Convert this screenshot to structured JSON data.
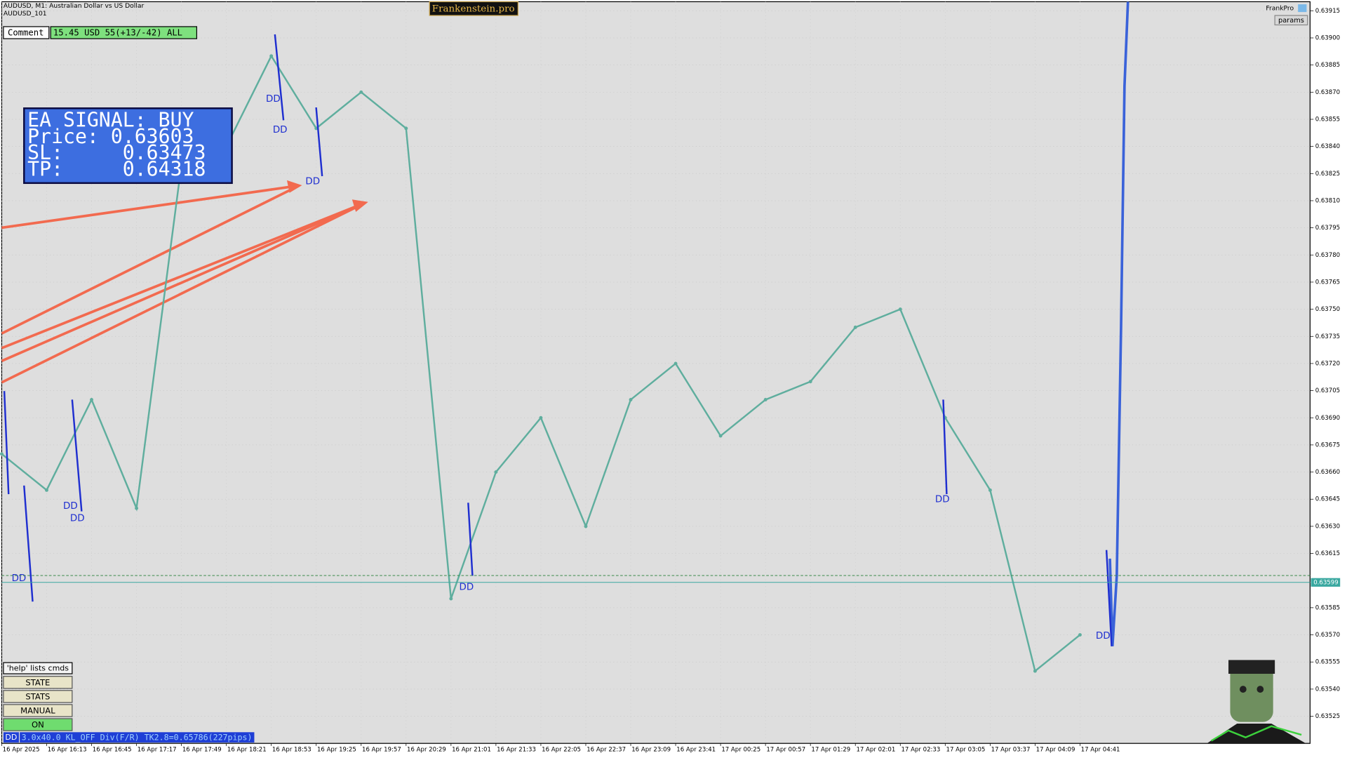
{
  "header": {
    "symbol": "AUDUSD, M1:  Australian Dollar vs US Dollar",
    "template": "AUDUSD_101",
    "brand": "Frankenstein.pro",
    "account": "FrankPro",
    "params_button": "params"
  },
  "comment": {
    "label": "Comment",
    "value": "15.45 USD 55(+13/-42) ALL"
  },
  "signal_box": {
    "lines": [
      "EA SIGNAL: BUY",
      "Price: 0.63603",
      "SL:     0.63473",
      "TP:     0.64318"
    ]
  },
  "buttons": {
    "help": "'help' lists cmds",
    "items": [
      "STATE",
      "STATS",
      "MANUAL",
      "ON"
    ]
  },
  "status": {
    "tag": "DD",
    "text": "3.0x40.0 KL_OFF Div(F/R) TK2.8=0.65786(227pips)"
  },
  "chart_data": {
    "type": "line",
    "categories": [
      "16 Apr 2025",
      "16 Apr 16:13",
      "16 Apr 16:45",
      "16 Apr 17:17",
      "16 Apr 17:49",
      "16 Apr 18:21",
      "16 Apr 18:53",
      "16 Apr 19:25",
      "16 Apr 19:57",
      "16 Apr 20:29",
      "16 Apr 21:01",
      "16 Apr 21:33",
      "16 Apr 22:05",
      "16 Apr 22:37",
      "16 Apr 23:09",
      "16 Apr 23:41",
      "17 Apr 00:25",
      "17 Apr 00:57",
      "17 Apr 01:29",
      "17 Apr 02:01",
      "17 Apr 02:33",
      "17 Apr 03:05",
      "17 Apr 03:37",
      "17 Apr 04:09",
      "17 Apr 04:41"
    ],
    "values": [
      0.6367,
      0.6365,
      0.637,
      0.6364,
      0.6383,
      0.6384,
      0.6389,
      0.6385,
      0.6387,
      0.6385,
      0.6359,
      0.6366,
      0.6369,
      0.6363,
      0.637,
      0.6372,
      0.6368,
      0.637,
      0.6371,
      0.6374,
      0.6375,
      0.6369,
      0.6365,
      0.6355,
      0.6357
    ],
    "color": "#5fae9e",
    "ylim": [
      0.6351,
      0.6392
    ],
    "yticks": [
      0.63915,
      {
        "value": 0.639,
        "label": "0.63900"
      },
      0.63885,
      {
        "value": 0.6387,
        "label": "0.63870"
      },
      0.63855,
      {
        "value": 0.6384,
        "label": "0.63840"
      },
      0.63825,
      {
        "value": 0.6381,
        "label": "0.63810"
      },
      0.63795,
      {
        "value": 0.6378,
        "label": "0.63780"
      },
      0.63765,
      {
        "value": 0.6375,
        "label": "0.63750"
      },
      0.63735,
      {
        "value": 0.6372,
        "label": "0.63720"
      },
      0.63705,
      {
        "value": 0.6369,
        "label": "0.63690"
      },
      0.63675,
      {
        "value": 0.6366,
        "label": "0.63660"
      },
      0.63645,
      {
        "value": 0.6363,
        "label": "0.63630"
      },
      0.63615,
      0.63585,
      {
        "value": 0.6357,
        "label": "0.63570"
      },
      0.63555,
      {
        "value": 0.6354,
        "label": "0.63540"
      },
      0.63525
    ],
    "current_price": 0.63599,
    "grid": true,
    "annotations": [
      "DD",
      "DD",
      "DD",
      "DD",
      "DD",
      "DD",
      "DD",
      "DD",
      "DD"
    ]
  }
}
